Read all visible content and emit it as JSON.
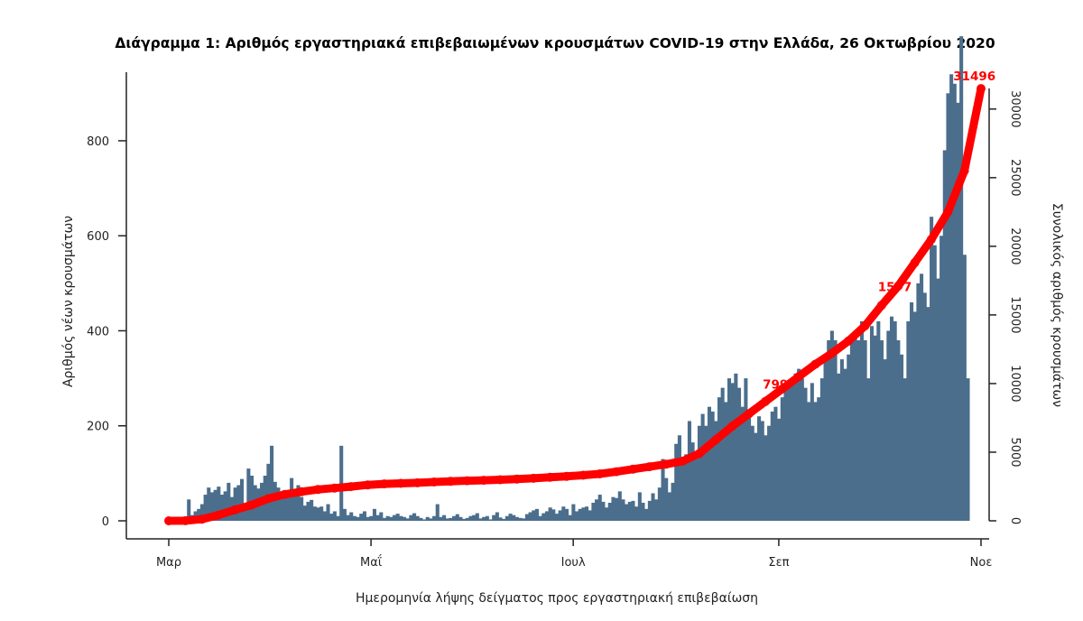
{
  "chart_data": {
    "type": "bar",
    "title": "Διάγραμμα 1: Αριθμός εργαστηριακά επιβεβαιωμένων κρουσμάτων COVID-19 στην Ελλάδα, 26 Οκτωβρίου 2020",
    "xlabel": "Ημερομηνία λήψης δείγματος προς εργαστηριακή επιβεβαίωση",
    "ylabel": "Αριθμός νέων κρουσμάτων",
    "y2label": "Συνολικός αριθμός κρουσμάτων",
    "ylim": [
      0,
      950
    ],
    "y2lim": [
      0,
      31500
    ],
    "yticks": [
      0,
      200,
      400,
      600,
      800
    ],
    "y2ticks": [
      0,
      5000,
      10000,
      15000,
      20000,
      25000,
      30000
    ],
    "y2tick_labels": [
      "0",
      "5000",
      "10000",
      "15000",
      "20000",
      "25000",
      "30000"
    ],
    "xlim": [
      0,
      245
    ],
    "xtick_positions": [
      0,
      61,
      122,
      184,
      245
    ],
    "xtick_labels": [
      "Μαρ",
      "Μαΐ",
      "Ιουλ",
      "Σεπ",
      "Νοε"
    ],
    "bar_color": "#4b6e8c",
    "line_color": "#ff0000",
    "grid": false,
    "legend": "none",
    "series": [
      {
        "type": "bar",
        "axis": "left",
        "start_day": -3,
        "values": [
          0,
          0,
          0,
          0,
          0,
          0,
          0,
          0,
          3,
          45,
          12,
          20,
          25,
          35,
          55,
          70,
          60,
          65,
          72,
          55,
          62,
          80,
          50,
          70,
          75,
          88,
          30,
          110,
          95,
          75,
          68,
          80,
          95,
          120,
          158,
          82,
          70,
          60,
          50,
          58,
          90,
          62,
          75,
          50,
          32,
          40,
          44,
          30,
          28,
          30,
          20,
          35,
          15,
          20,
          10,
          158,
          25,
          12,
          18,
          10,
          8,
          15,
          20,
          8,
          10,
          25,
          12,
          18,
          6,
          10,
          8,
          12,
          15,
          10,
          8,
          5,
          12,
          16,
          10,
          6,
          3,
          8,
          5,
          10,
          35,
          8,
          12,
          5,
          6,
          10,
          14,
          8,
          4,
          6,
          10,
          12,
          16,
          5,
          8,
          10,
          3,
          12,
          18,
          7,
          4,
          10,
          15,
          12,
          8,
          6,
          5,
          14,
          18,
          22,
          25,
          10,
          16,
          20,
          28,
          24,
          15,
          22,
          30,
          25,
          12,
          35,
          20,
          25,
          28,
          30,
          22,
          38,
          45,
          55,
          40,
          28,
          38,
          50,
          48,
          62,
          45,
          35,
          40,
          42,
          30,
          60,
          38,
          25,
          42,
          58,
          45,
          70,
          130,
          90,
          60,
          80,
          162,
          180,
          120,
          140,
          210,
          165,
          130,
          200,
          225,
          200,
          240,
          230,
          210,
          260,
          280,
          250,
          300,
          290,
          310,
          280,
          240,
          300,
          225,
          200,
          185,
          220,
          210,
          180,
          200,
          230,
          240,
          215,
          260,
          280,
          290,
          300,
          310,
          320,
          300,
          280,
          250,
          290,
          250,
          260,
          300,
          350,
          380,
          400,
          380,
          310,
          340,
          320,
          350,
          390,
          400,
          380,
          420,
          380,
          300,
          410,
          390,
          420,
          380,
          340,
          400,
          430,
          420,
          380,
          350,
          300,
          420,
          460,
          440,
          500,
          520,
          480,
          450,
          640,
          580,
          510,
          600,
          780,
          900,
          940,
          920,
          880,
          1020,
          560,
          300
        ]
      },
      {
        "type": "line",
        "axis": "right",
        "name": "Συνολικός αριθμός κρουσμάτων",
        "x": [
          0,
          5,
          10,
          15,
          20,
          25,
          30,
          35,
          40,
          45,
          50,
          55,
          60,
          65,
          70,
          75,
          80,
          85,
          90,
          95,
          100,
          105,
          110,
          115,
          120,
          125,
          130,
          135,
          140,
          145,
          150,
          155,
          160,
          165,
          170,
          175,
          180,
          185,
          190,
          195,
          200,
          205,
          210,
          215,
          220,
          225,
          230,
          235,
          240,
          245
        ],
        "values": [
          0,
          5,
          120,
          420,
          800,
          1150,
          1620,
          1930,
          2120,
          2280,
          2390,
          2490,
          2620,
          2690,
          2730,
          2770,
          2830,
          2880,
          2920,
          2950,
          2990,
          3040,
          3100,
          3170,
          3240,
          3320,
          3420,
          3580,
          3760,
          3940,
          4120,
          4350,
          4900,
          5900,
          6900,
          7800,
          8700,
          9600,
          10500,
          11400,
          12200,
          13100,
          14200,
          15700,
          17100,
          18800,
          20500,
          22500,
          25500,
          31496
        ]
      }
    ],
    "annotations": [
      {
        "text": "31496",
        "x": 243,
        "y2": 31496
      },
      {
        "text": "1577",
        "x": 219,
        "y2": 16150
      },
      {
        "text": "799",
        "x": 183,
        "y2": 9050
      }
    ]
  }
}
